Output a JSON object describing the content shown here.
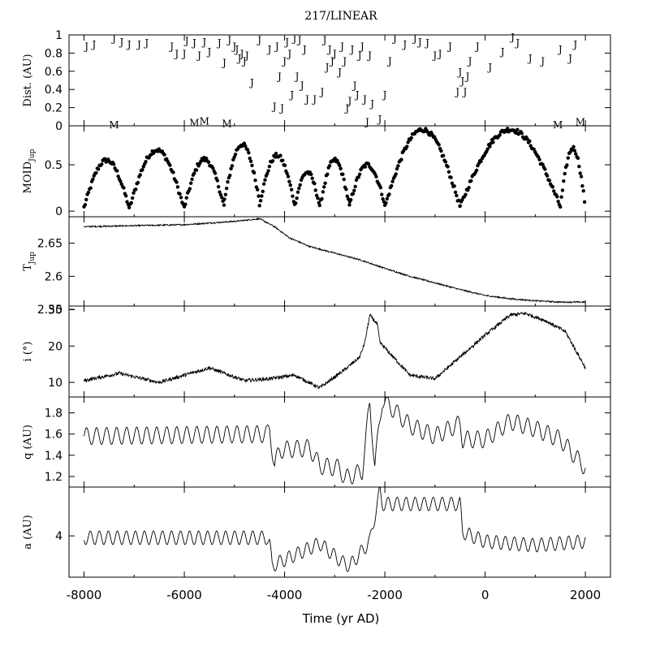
{
  "chart_data": {
    "type": "line",
    "title": "217/LINEAR",
    "xlabel": "Time (yr AD)",
    "xlim": [
      -8300,
      2500
    ],
    "x_ticks": [
      "-8000",
      "-6000",
      "-4000",
      "-2000",
      "0",
      "2000"
    ],
    "panels": [
      {
        "id": "dist",
        "ylabel": "Dist. (AU)",
        "kind": "markers",
        "ylim": [
          0,
          1
        ],
        "y_ticks": [
          "0",
          "0.2",
          "0.4",
          "0.6",
          "0.8",
          "1"
        ],
        "series": [
          {
            "name": "J",
            "points": [
              [
                -7950,
                0.88
              ],
              [
                -7800,
                0.9
              ],
              [
                -7400,
                0.97
              ],
              [
                -7250,
                0.93
              ],
              [
                -7100,
                0.9
              ],
              [
                -6900,
                0.9
              ],
              [
                -6750,
                0.92
              ],
              [
                -6250,
                0.88
              ],
              [
                -6150,
                0.8
              ],
              [
                -6000,
                0.8
              ],
              [
                -5950,
                0.94
              ],
              [
                -5800,
                0.92
              ],
              [
                -5700,
                0.78
              ],
              [
                -5600,
                0.93
              ],
              [
                -5500,
                0.82
              ],
              [
                -5300,
                0.92
              ],
              [
                -5200,
                0.7
              ],
              [
                -5100,
                0.95
              ],
              [
                -5000,
                0.88
              ],
              [
                -4950,
                0.85
              ],
              [
                -4900,
                0.75
              ],
              [
                -4850,
                0.8
              ],
              [
                -4800,
                0.72
              ],
              [
                -4750,
                0.78
              ],
              [
                -4650,
                0.48
              ],
              [
                -4500,
                0.95
              ],
              [
                -4300,
                0.85
              ],
              [
                -4200,
                0.22
              ],
              [
                -4150,
                0.88
              ],
              [
                -4100,
                0.55
              ],
              [
                -4050,
                0.2
              ],
              [
                -4000,
                0.72
              ],
              [
                -3950,
                0.93
              ],
              [
                -3900,
                0.8
              ],
              [
                -3850,
                0.35
              ],
              [
                -3800,
                0.97
              ],
              [
                -3750,
                0.55
              ],
              [
                -3700,
                0.95
              ],
              [
                -3650,
                0.45
              ],
              [
                -3600,
                0.85
              ],
              [
                -3550,
                0.3
              ],
              [
                -3400,
                0.3
              ],
              [
                -3250,
                0.38
              ],
              [
                -3200,
                0.95
              ],
              [
                -3150,
                0.65
              ],
              [
                -3100,
                0.85
              ],
              [
                -3050,
                0.72
              ],
              [
                -3000,
                0.8
              ],
              [
                -2900,
                0.6
              ],
              [
                -2850,
                0.88
              ],
              [
                -2800,
                0.72
              ],
              [
                -2750,
                0.2
              ],
              [
                -2700,
                0.28
              ],
              [
                -2650,
                0.85
              ],
              [
                -2600,
                0.45
              ],
              [
                -2550,
                0.35
              ],
              [
                -2500,
                0.78
              ],
              [
                -2450,
                0.88
              ],
              [
                -2400,
                0.3
              ],
              [
                -2350,
                0.05
              ],
              [
                -2300,
                0.78
              ],
              [
                -2250,
                0.25
              ],
              [
                -2100,
                0.08
              ],
              [
                -2000,
                0.35
              ],
              [
                -1900,
                0.72
              ],
              [
                -1800,
                0.97
              ],
              [
                -1600,
                0.9
              ],
              [
                -1400,
                0.97
              ],
              [
                -1300,
                0.93
              ],
              [
                -1150,
                0.92
              ],
              [
                -1000,
                0.78
              ],
              [
                -900,
                0.8
              ],
              [
                -700,
                0.88
              ],
              [
                -550,
                0.38
              ],
              [
                -500,
                0.6
              ],
              [
                -450,
                0.5
              ],
              [
                -400,
                0.38
              ],
              [
                -350,
                0.55
              ],
              [
                -300,
                0.72
              ],
              [
                -150,
                0.88
              ],
              [
                100,
                0.65
              ],
              [
                350,
                0.82
              ],
              [
                550,
                0.98
              ],
              [
                650,
                0.92
              ],
              [
                900,
                0.75
              ],
              [
                1150,
                0.72
              ],
              [
                1500,
                0.85
              ],
              [
                1700,
                0.75
              ],
              [
                1800,
                0.9
              ]
            ]
          },
          {
            "name": "M",
            "points": [
              [
                -7400,
                0.02
              ],
              [
                -5800,
                0.04
              ],
              [
                -5600,
                0.06
              ],
              [
                -5150,
                0.03
              ],
              [
                1450,
                0.02
              ],
              [
                1900,
                0.05
              ]
            ]
          }
        ]
      },
      {
        "id": "moid",
        "ylabel": "MOID",
        "ylabel_sub": "Jup",
        "kind": "scatter",
        "ylim": [
          -0.06,
          0.92
        ],
        "y_ticks": [
          "0",
          "0.5"
        ]
      },
      {
        "id": "tjup",
        "ylabel": "T",
        "ylabel_sub": "Jup",
        "kind": "line",
        "ylim": [
          2.555,
          2.69
        ],
        "y_ticks": [
          "2.55",
          "2.6",
          "2.65"
        ],
        "key_points": [
          [
            -8000,
            2.675
          ],
          [
            -6000,
            2.678
          ],
          [
            -5000,
            2.683
          ],
          [
            -4500,
            2.687
          ],
          [
            -4200,
            2.675
          ],
          [
            -3900,
            2.658
          ],
          [
            -3500,
            2.645
          ],
          [
            -3000,
            2.635
          ],
          [
            -2500,
            2.625
          ],
          [
            -2000,
            2.612
          ],
          [
            -1500,
            2.6
          ],
          [
            -1000,
            2.59
          ],
          [
            -500,
            2.58
          ],
          [
            0,
            2.571
          ],
          [
            500,
            2.566
          ],
          [
            1000,
            2.563
          ],
          [
            1500,
            2.561
          ],
          [
            2000,
            2.561
          ]
        ]
      },
      {
        "id": "incl",
        "ylabel": "i (°)",
        "kind": "line",
        "ylim": [
          6,
          31
        ],
        "y_ticks": [
          "10",
          "20",
          "30"
        ],
        "key_points": [
          [
            -8000,
            10.5
          ],
          [
            -7300,
            12.5
          ],
          [
            -6500,
            10
          ],
          [
            -5500,
            14
          ],
          [
            -4800,
            10.5
          ],
          [
            -4300,
            11
          ],
          [
            -3800,
            12
          ],
          [
            -3300,
            8.5
          ],
          [
            -2800,
            13.5
          ],
          [
            -2500,
            17
          ],
          [
            -2400,
            21
          ],
          [
            -2300,
            28.5
          ],
          [
            -2150,
            26
          ],
          [
            -2100,
            21
          ],
          [
            -1500,
            12
          ],
          [
            -1000,
            11
          ],
          [
            0,
            23
          ],
          [
            500,
            28.5
          ],
          [
            800,
            29
          ],
          [
            1200,
            27
          ],
          [
            1600,
            24
          ],
          [
            2000,
            14
          ]
        ]
      },
      {
        "id": "q",
        "ylabel": "q (AU)",
        "kind": "line",
        "ylim": [
          1.1,
          1.95
        ],
        "y_ticks": [
          "1.2",
          "1.4",
          "1.6",
          "1.8"
        ],
        "key_points": [
          [
            -8000,
            1.58
          ],
          [
            -4350,
            1.6
          ],
          [
            -4300,
            1.65
          ],
          [
            -4200,
            1.3
          ],
          [
            -4100,
            1.45
          ],
          [
            -3500,
            1.47
          ],
          [
            -3300,
            1.3
          ],
          [
            -2900,
            1.28
          ],
          [
            -2800,
            1.18
          ],
          [
            -2450,
            1.25
          ],
          [
            -2300,
            1.9
          ],
          [
            -2200,
            1.3
          ],
          [
            -2050,
            1.93
          ],
          [
            -1500,
            1.68
          ],
          [
            -1000,
            1.58
          ],
          [
            -500,
            1.7
          ],
          [
            -450,
            1.55
          ],
          [
            0,
            1.55
          ],
          [
            500,
            1.72
          ],
          [
            1000,
            1.65
          ],
          [
            1500,
            1.55
          ],
          [
            2000,
            1.28
          ]
        ]
      },
      {
        "id": "a",
        "ylabel": "a (AU)",
        "kind": "line",
        "ylim": [
          2.9,
          5.3
        ],
        "y_ticks": [
          "4"
        ],
        "key_points": [
          [
            -8000,
            3.95
          ],
          [
            -4350,
            3.95
          ],
          [
            -4300,
            3.8
          ],
          [
            -4250,
            3.2
          ],
          [
            -4100,
            3.3
          ],
          [
            -3700,
            3.55
          ],
          [
            -3300,
            3.8
          ],
          [
            -2850,
            3.3
          ],
          [
            -2700,
            3.2
          ],
          [
            -2300,
            3.85
          ],
          [
            -2100,
            5.2
          ],
          [
            -2050,
            4.85
          ],
          [
            -500,
            4.85
          ],
          [
            -450,
            4.1
          ],
          [
            0,
            3.85
          ],
          [
            1000,
            3.75
          ],
          [
            2000,
            3.85
          ]
        ]
      }
    ]
  }
}
